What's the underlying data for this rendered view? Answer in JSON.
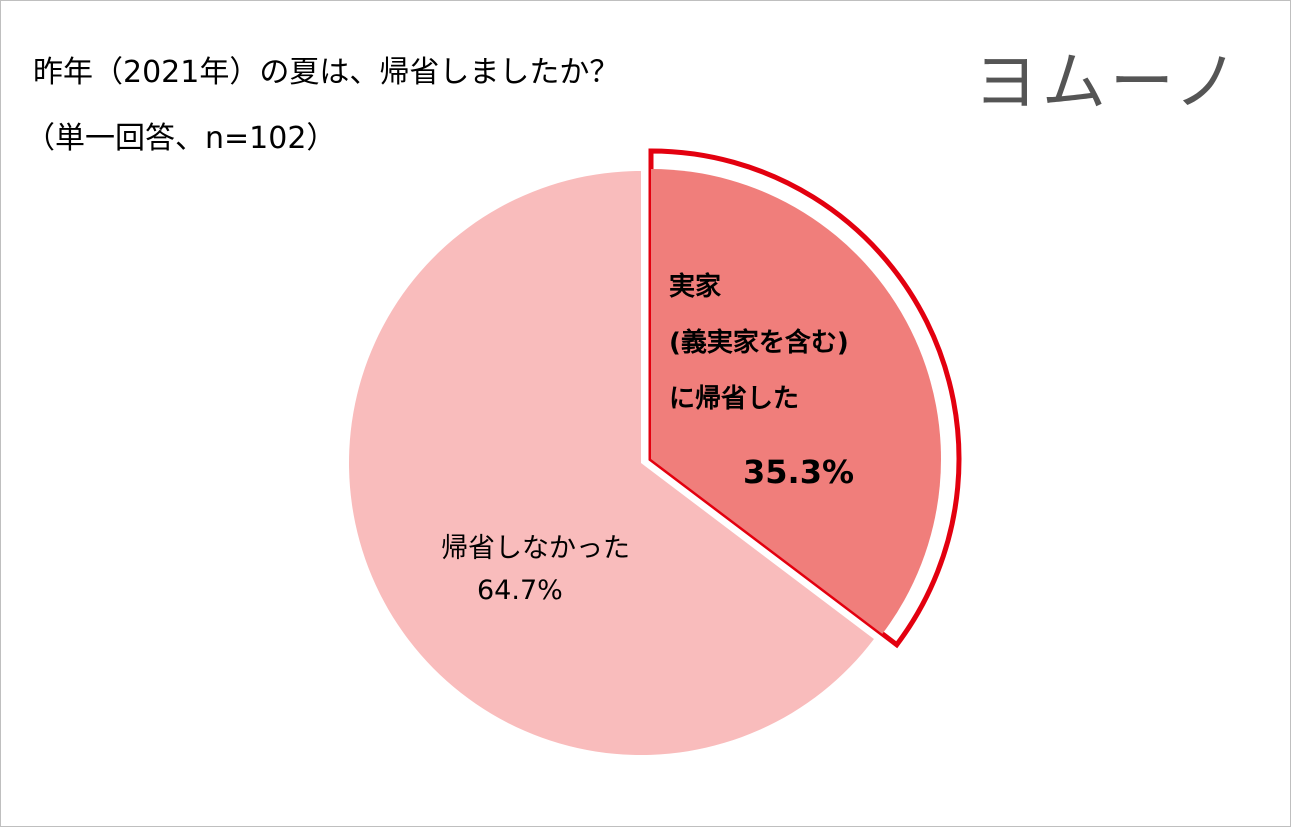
{
  "logo": "ヨムーノ",
  "chart_data": {
    "type": "pie",
    "title": "昨年（2021年）の夏は、帰省しましたか？",
    "subtitle": "（単一回答、n=102）",
    "categories": [
      "実家\n(義実家を含む)\nに帰省した",
      "帰省しなかった"
    ],
    "values": [
      35.3,
      64.7
    ],
    "value_labels": [
      "35.3%",
      "64.7%"
    ],
    "colors": [
      "#f07e7b",
      "#f9bcbc"
    ],
    "highlight_color": "#e3000f"
  }
}
